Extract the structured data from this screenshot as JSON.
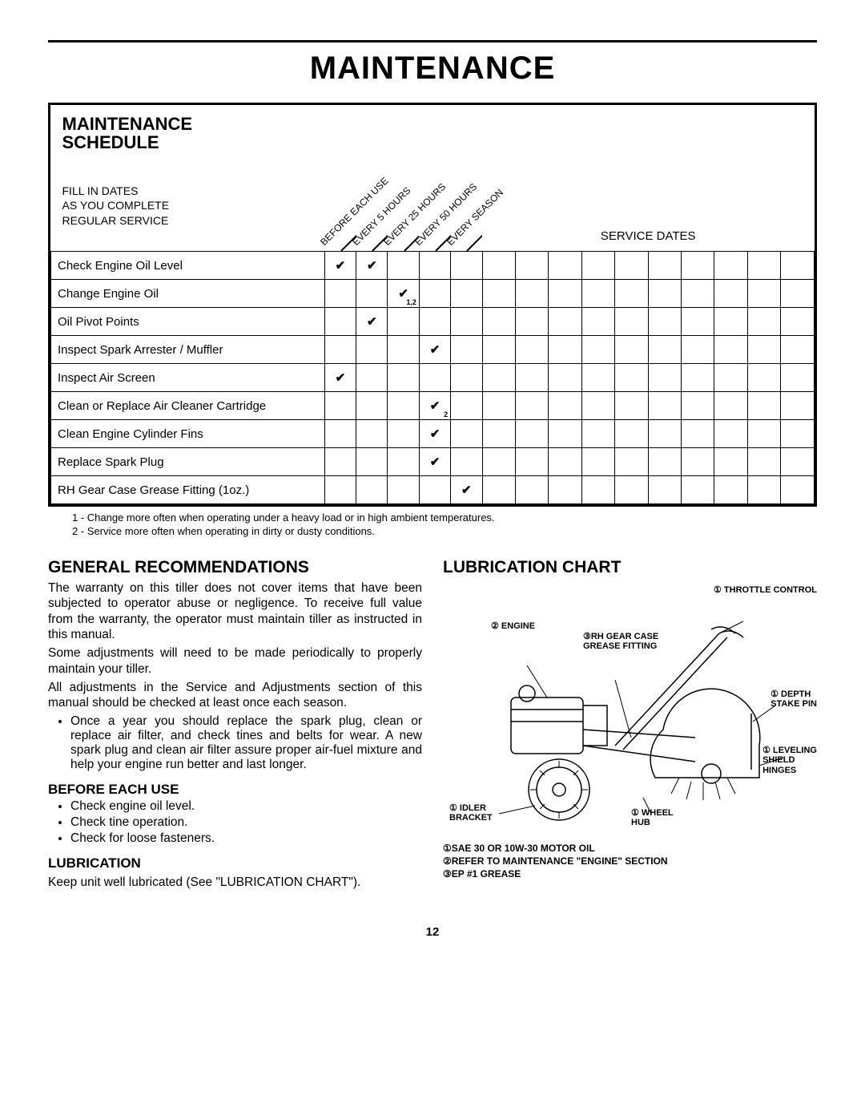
{
  "page_title": "MAINTENANCE",
  "page_number": "12",
  "schedule": {
    "title_line1": "MAINTENANCE",
    "title_line2": "SCHEDULE",
    "fill_in_1": "FILL IN DATES",
    "fill_in_2": "AS YOU COMPLETE",
    "fill_in_3": "REGULAR SERVICE",
    "service_dates_label": "SERVICE DATES",
    "interval_cols": [
      "BEFORE EACH USE",
      "EVERY 5 HOURS",
      "EVERY 25 HOURS",
      "EVERY 50 HOURS",
      "EVERY SEASON"
    ],
    "num_date_cols": 10,
    "rows": [
      {
        "label": "Check Engine Oil Level",
        "checks": [
          "✔",
          "✔",
          "",
          "",
          ""
        ],
        "subs": [
          "",
          "",
          "",
          "",
          ""
        ]
      },
      {
        "label": "Change Engine Oil",
        "checks": [
          "",
          "",
          "✔",
          "",
          ""
        ],
        "subs": [
          "",
          "",
          "1,2",
          "",
          ""
        ]
      },
      {
        "label": "Oil Pivot Points",
        "checks": [
          "",
          "✔",
          "",
          "",
          ""
        ],
        "subs": [
          "",
          "",
          "",
          "",
          ""
        ]
      },
      {
        "label": "Inspect Spark Arrester / Muffler",
        "checks": [
          "",
          "",
          "",
          "✔",
          ""
        ],
        "subs": [
          "",
          "",
          "",
          "",
          ""
        ]
      },
      {
        "label": "Inspect Air Screen",
        "checks": [
          "✔",
          "",
          "",
          "",
          ""
        ],
        "subs": [
          "",
          "",
          "",
          "",
          ""
        ]
      },
      {
        "label": "Clean or Replace Air Cleaner Cartridge",
        "checks": [
          "",
          "",
          "",
          "✔",
          ""
        ],
        "subs": [
          "",
          "",
          "",
          "2",
          ""
        ]
      },
      {
        "label": "Clean Engine Cylinder Fins",
        "checks": [
          "",
          "",
          "",
          "✔",
          ""
        ],
        "subs": [
          "",
          "",
          "",
          "",
          ""
        ]
      },
      {
        "label": "Replace Spark Plug",
        "checks": [
          "",
          "",
          "",
          "✔",
          ""
        ],
        "subs": [
          "",
          "",
          "",
          "",
          ""
        ]
      },
      {
        "label": "RH Gear Case Grease Fitting (1oz.)",
        "checks": [
          "",
          "",
          "",
          "",
          "✔"
        ],
        "subs": [
          "",
          "",
          "",
          "",
          ""
        ]
      }
    ],
    "footnote1": "1 - Change more often when operating under a heavy load or in high ambient temperatures.",
    "footnote2": "2 - Service more often when operating in dirty or dusty conditions."
  },
  "left": {
    "h_general": "GENERAL RECOMMENDATIONS",
    "p1": "The warranty on this tiller does not cover items that  have been subjected to operator abuse or negligence. To receive full value from the warranty, the operator must maintain tiller as instructed in this manual.",
    "p2": "Some adjustments will need to be made periodically to properly maintain your tiller.",
    "p3": "All adjustments in the Service and Adjustments section of this manual should  be checked  at  least  once each season.",
    "bullet_annual": "Once a year you should replace the spark plug, clean or replace air filter, and check tines and belts for wear. A new spark plug and clean air filter assure proper air-fuel mixture and help your engine run better and last longer.",
    "h_before": "BEFORE EACH USE",
    "before_items": [
      "Check engine oil level.",
      "Check tine operation.",
      "Check for loose fasteners."
    ],
    "h_lub": "LUBRICATION",
    "p_lub": "Keep unit well lubricated (See \"LUBRICATION CHART\")."
  },
  "right": {
    "h_chart": "LUBRICATION CHART",
    "labels": {
      "throttle": "① THROTTLE CONTROL",
      "engine": "② ENGINE",
      "gearcase1": "③RH GEAR CASE",
      "gearcase2": "GREASE FITTING",
      "depth1": "① DEPTH",
      "depth2": "STAKE PIN",
      "level1": "① LEVELING",
      "level2": "SHIELD",
      "level3": "HINGES",
      "idler1": "① IDLER",
      "idler2": "BRACKET",
      "wheel1": "① WHEEL",
      "wheel2": "HUB"
    },
    "legend1": "①SAE 30 OR 10W-30 MOTOR OIL",
    "legend2": "②REFER TO MAINTENANCE \"ENGINE\" SECTION",
    "legend3": "③EP #1 GREASE"
  }
}
